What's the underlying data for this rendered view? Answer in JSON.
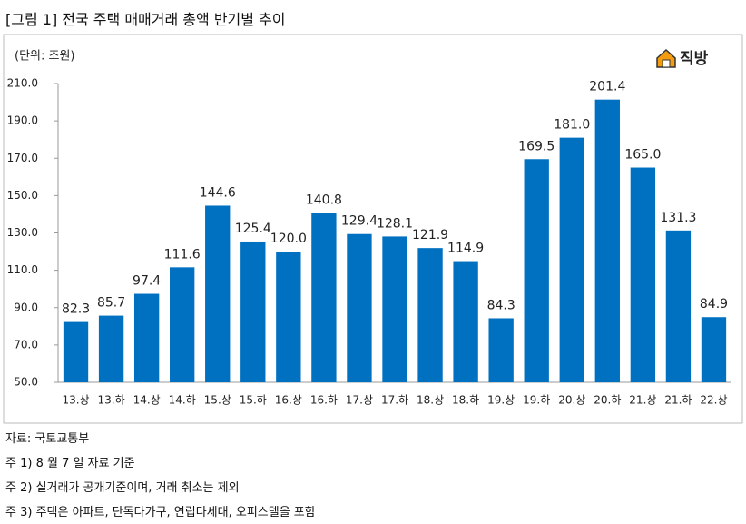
{
  "title": "[그림 1] 전국 주택 매매거래 총액 반기별 추이",
  "chart_data": {
    "type": "bar",
    "subtitle": "(단위: 조원)",
    "logo": "직방",
    "categories": [
      "13.상",
      "13.하",
      "14.상",
      "14.하",
      "15.상",
      "15.하",
      "16.상",
      "16.하",
      "17.상",
      "17.하",
      "18.상",
      "18.하",
      "19.상",
      "19.하",
      "20.상",
      "20.하",
      "21.상",
      "21.하",
      "22.상"
    ],
    "values": [
      82.3,
      85.7,
      97.4,
      111.6,
      144.6,
      125.4,
      120.0,
      140.8,
      129.4,
      128.1,
      121.9,
      114.9,
      84.3,
      169.5,
      181.0,
      201.4,
      165.0,
      131.3,
      84.9
    ],
    "value_labels": [
      "82.3",
      "85.7",
      "97.4",
      "111.6",
      "144.6",
      "125.4",
      "120.0",
      "140.8",
      "129.4",
      "128.1",
      "121.9",
      "114.9",
      "84.3",
      "169.5",
      "181.0",
      "201.4",
      "165.0",
      "131.3",
      "84.9"
    ],
    "color": "#0070c0",
    "ylim": [
      50,
      210
    ],
    "yticks": [
      {
        "value": 50,
        "label": "50.0"
      },
      {
        "value": 70,
        "label": "70.0"
      },
      {
        "value": 90,
        "label": "90.0"
      },
      {
        "value": 110,
        "label": "110.0"
      },
      {
        "value": 130,
        "label": "130.0"
      },
      {
        "value": 150,
        "label": "150.0"
      },
      {
        "value": 170,
        "label": "170.0"
      },
      {
        "value": 190,
        "label": "190.0"
      },
      {
        "value": 210,
        "label": "210.0"
      }
    ],
    "grid": false
  },
  "notes": [
    "자료: 국토교통부",
    "주 1) 8 월 7 일 자료 기준",
    "주 2) 실거래가 공개기준이며, 거래 취소는 제외",
    "주 3) 주택은 아파트, 단독다가구, 연립다세대, 오피스텔을 포함"
  ]
}
